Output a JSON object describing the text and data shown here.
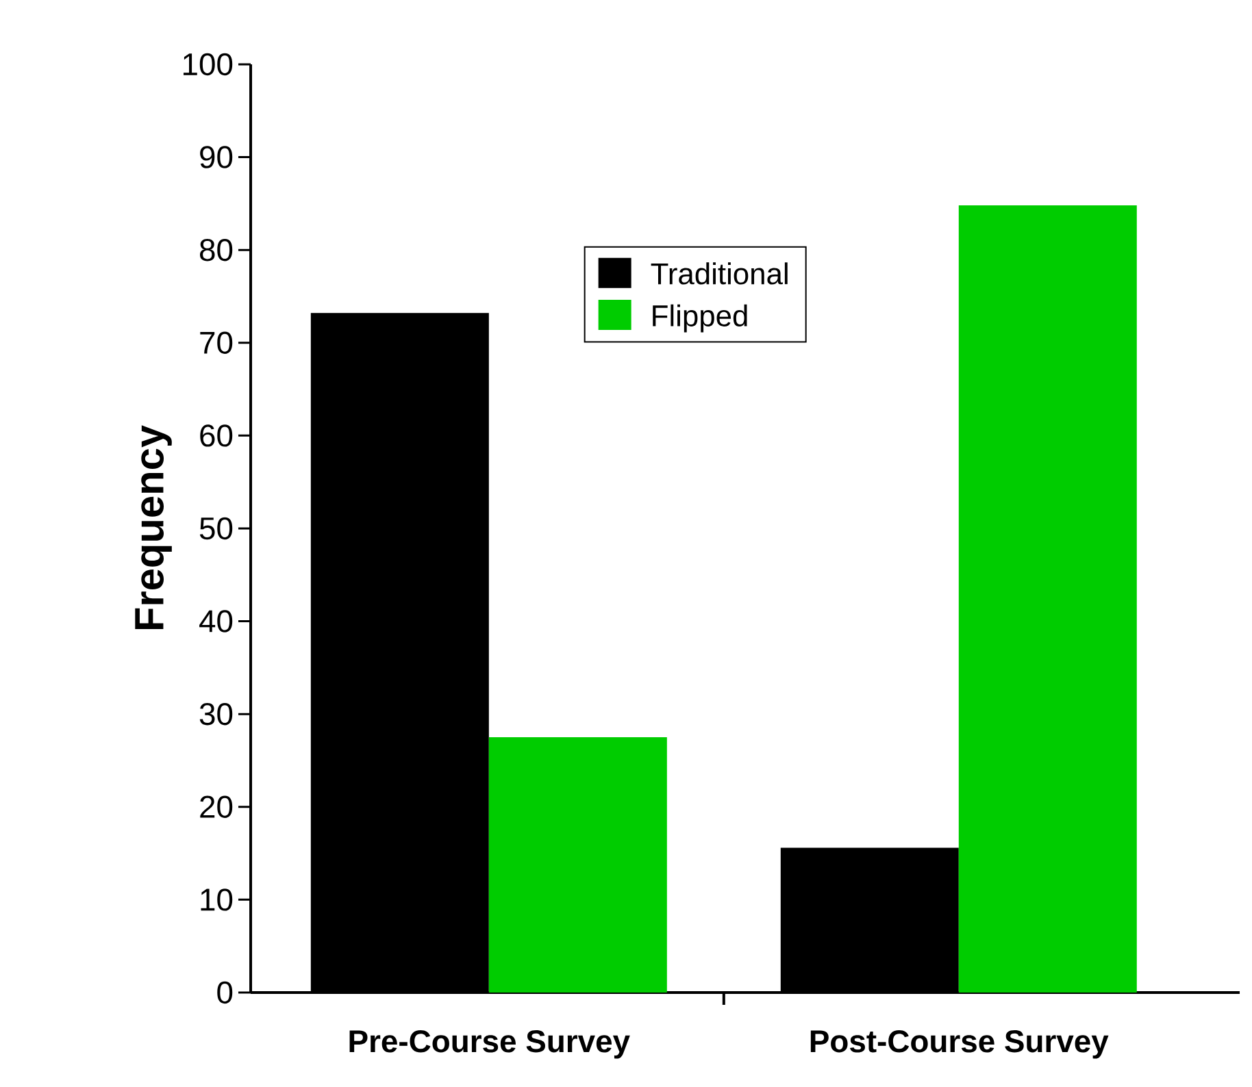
{
  "chart_data": {
    "type": "bar",
    "ylabel": "Frequency",
    "categories": [
      "Pre-Course Survey",
      "Post-Course Survey"
    ],
    "series": [
      {
        "name": "Traditional",
        "color": "#000000",
        "values": [
          73.2,
          15.6
        ]
      },
      {
        "name": "Flipped",
        "color": "#00cc00",
        "values": [
          27.5,
          84.8
        ]
      }
    ],
    "ylim": [
      0,
      100
    ],
    "yticks": [
      0,
      10,
      20,
      30,
      40,
      50,
      60,
      70,
      80,
      90,
      100
    ],
    "grid": false,
    "legend": "top"
  }
}
